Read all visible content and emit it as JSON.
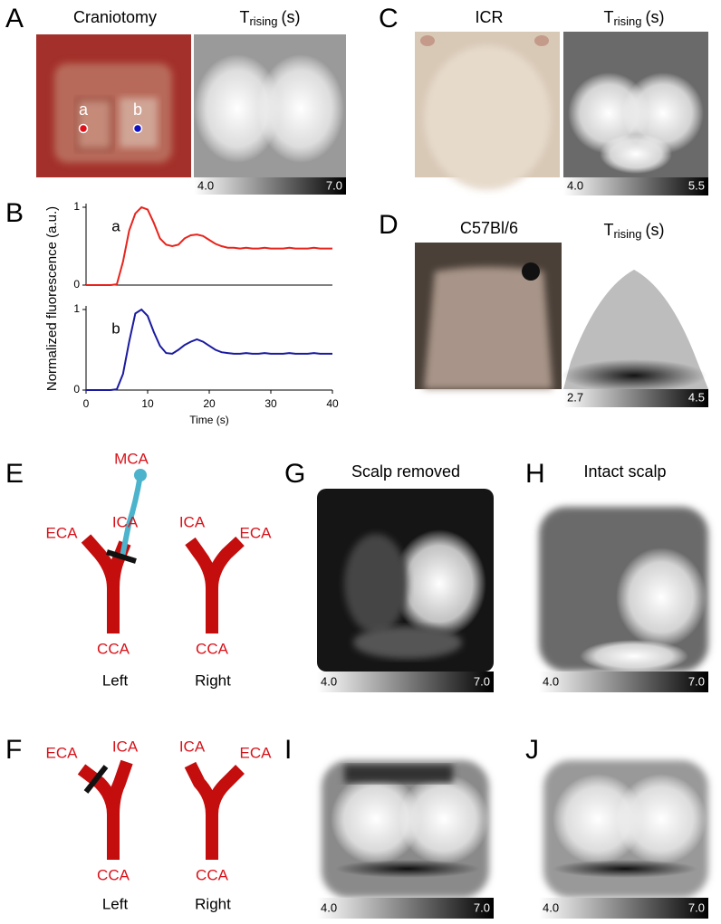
{
  "panels": {
    "A": {
      "letter": "A",
      "photo_title": "Craniotomy",
      "map_title": {
        "main": "T",
        "sub": "rising",
        "unit": "(s)"
      },
      "points": [
        "a",
        "b"
      ],
      "colorbar": [
        {
          "value": 4,
          "label": "4.0"
        },
        {
          "value": 7,
          "label": "7.0"
        }
      ]
    },
    "B": {
      "letter": "B"
    },
    "C": {
      "letter": "C",
      "photo_title": "ICR",
      "map_title": {
        "main": "T",
        "sub": "rising",
        "unit": "(s)"
      },
      "colorbar": [
        {
          "value": 4,
          "label": "4.0"
        },
        5.5
      ]
    },
    "D": {
      "letter": "D",
      "photo_title": "C57Bl/6",
      "map_title": {
        "main": "T",
        "sub": "rising",
        "unit": "(s)"
      },
      "colorbar": [
        2.7,
        4.5
      ]
    },
    "E": {
      "letter": "E",
      "labels": {
        "mca": "MCA",
        "left_ica": "ICA",
        "left_eca": "ECA",
        "right_ica": "ICA",
        "right_eca": "ECA",
        "left_cca": "CCA",
        "right_cca": "CCA",
        "left": "Left",
        "right": "Right"
      }
    },
    "F": {
      "letter": "F",
      "labels": {
        "left_ica": "ICA",
        "left_eca": "ECA",
        "right_ica": "ICA",
        "right_eca": "ECA",
        "left_cca": "CCA",
        "right_cca": "CCA",
        "left": "Left",
        "right": "Right"
      }
    },
    "G": {
      "letter": "G",
      "title": "Scalp removed",
      "colorbar": [
        {
          "value": 4,
          "label": "4.0"
        },
        {
          "value": 7,
          "label": "7.0"
        }
      ]
    },
    "H": {
      "letter": "H",
      "title": "Intact scalp",
      "colorbar": [
        {
          "value": 4,
          "label": "4.0"
        },
        {
          "value": 7,
          "label": "7.0"
        }
      ]
    },
    "I": {
      "letter": "I",
      "colorbar": [
        {
          "value": 4,
          "label": "4.0"
        },
        {
          "value": 7,
          "label": "7.0"
        }
      ]
    },
    "J": {
      "letter": "J",
      "colorbar": [
        {
          "value": 4,
          "label": "4.0"
        },
        {
          "value": 7,
          "label": "7.0"
        }
      ]
    }
  },
  "chart_data": [
    {
      "type": "line",
      "ylabel": "Normalized fluorescence (a.u.)",
      "x": [
        0,
        1,
        2,
        3,
        4,
        5,
        6,
        7,
        8,
        9,
        10,
        11,
        12,
        13,
        14,
        15,
        16,
        17,
        18,
        19,
        20,
        21,
        22,
        23,
        24,
        25,
        26,
        27,
        28,
        29,
        30,
        31,
        32,
        33,
        34,
        35,
        36,
        37,
        38,
        39,
        40
      ],
      "series": [
        {
          "name": "a",
          "color": "#e8231c",
          "values": [
            0,
            0,
            0,
            0,
            0,
            0.01,
            0.3,
            0.7,
            0.92,
            1.0,
            0.97,
            0.8,
            0.6,
            0.52,
            0.5,
            0.52,
            0.6,
            0.64,
            0.65,
            0.63,
            0.58,
            0.53,
            0.5,
            0.48,
            0.48,
            0.47,
            0.48,
            0.47,
            0.47,
            0.48,
            0.47,
            0.47,
            0.47,
            0.48,
            0.47,
            0.47,
            0.47,
            0.48,
            0.47,
            0.47,
            0.47
          ]
        }
      ],
      "xlim": [
        0,
        40
      ],
      "ylim": [
        0,
        1
      ],
      "yticks": [
        0,
        1
      ]
    },
    {
      "type": "line",
      "xlabel": "Time (s)",
      "x": [
        0,
        1,
        2,
        3,
        4,
        5,
        6,
        7,
        8,
        9,
        10,
        11,
        12,
        13,
        14,
        15,
        16,
        17,
        18,
        19,
        20,
        21,
        22,
        23,
        24,
        25,
        26,
        27,
        28,
        29,
        30,
        31,
        32,
        33,
        34,
        35,
        36,
        37,
        38,
        39,
        40
      ],
      "series": [
        {
          "name": "b",
          "color": "#1a1aa0",
          "values": [
            0,
            0,
            0,
            0,
            0,
            0.01,
            0.2,
            0.6,
            0.95,
            1.0,
            0.92,
            0.72,
            0.55,
            0.46,
            0.45,
            0.5,
            0.56,
            0.6,
            0.63,
            0.6,
            0.55,
            0.5,
            0.47,
            0.46,
            0.45,
            0.45,
            0.46,
            0.45,
            0.45,
            0.46,
            0.45,
            0.45,
            0.45,
            0.46,
            0.45,
            0.45,
            0.45,
            0.46,
            0.45,
            0.45,
            0.45
          ]
        }
      ],
      "xlim": [
        0,
        40
      ],
      "ylim": [
        0,
        1
      ],
      "xticks": [
        0,
        10,
        20,
        30,
        40
      ],
      "yticks": [
        0,
        1
      ]
    }
  ]
}
